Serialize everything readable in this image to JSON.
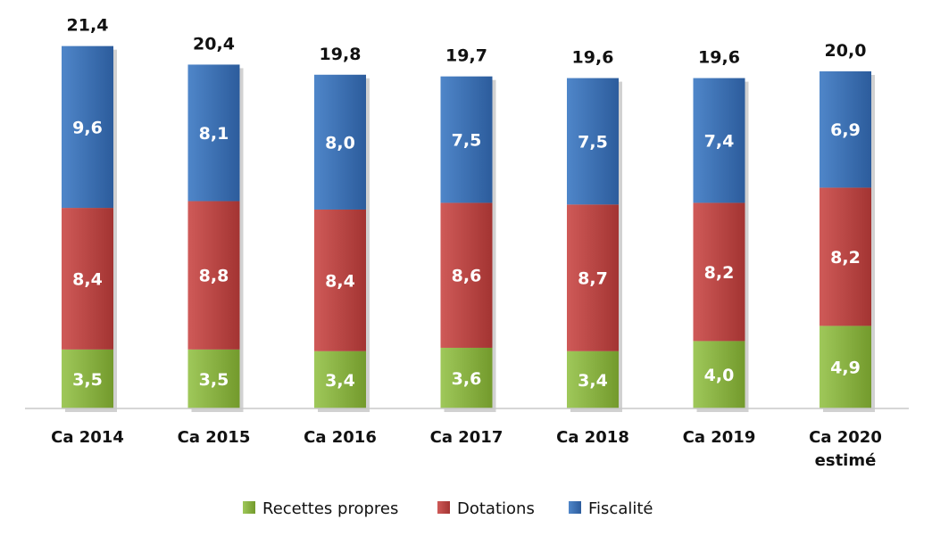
{
  "chart_data": {
    "type": "bar",
    "stacked": true,
    "title": "",
    "xlabel": "",
    "ylabel": "",
    "ylim": [
      0,
      22
    ],
    "grid": false,
    "legend_position": "bottom",
    "categories": [
      [
        "Ca 2014"
      ],
      [
        "Ca 2015"
      ],
      [
        "Ca 2016"
      ],
      [
        "Ca 2017"
      ],
      [
        "Ca 2018"
      ],
      [
        "Ca 2019"
      ],
      [
        "Ca 2020",
        "estimé"
      ]
    ],
    "series": [
      {
        "name": "Recettes propres",
        "color": "#8cb440",
        "values": [
          3.5,
          3.5,
          3.4,
          3.6,
          3.4,
          4.0,
          4.9
        ],
        "labels": [
          "3,5",
          "3,5",
          "3,4",
          "3,6",
          "3,4",
          "4,0",
          "4,9"
        ]
      },
      {
        "name": "Dotations",
        "color": "#c04545",
        "values": [
          8.4,
          8.8,
          8.4,
          8.6,
          8.7,
          8.2,
          8.2
        ],
        "labels": [
          "8,4",
          "8,8",
          "8,4",
          "8,6",
          "8,7",
          "8,2",
          "8,2"
        ]
      },
      {
        "name": "Fiscalité",
        "color": "#3d72b8",
        "values": [
          9.6,
          8.1,
          8.0,
          7.5,
          7.5,
          7.4,
          6.9
        ],
        "labels": [
          "9,6",
          "8,1",
          "8,0",
          "7,5",
          "7,5",
          "7,4",
          "6,9"
        ]
      }
    ],
    "totals": [
      21.4,
      20.4,
      19.8,
      19.7,
      19.6,
      19.6,
      20.0
    ],
    "total_labels": [
      "21,4",
      "20,4",
      "19,8",
      "19,7",
      "19,6",
      "19,6",
      "20,0"
    ]
  }
}
